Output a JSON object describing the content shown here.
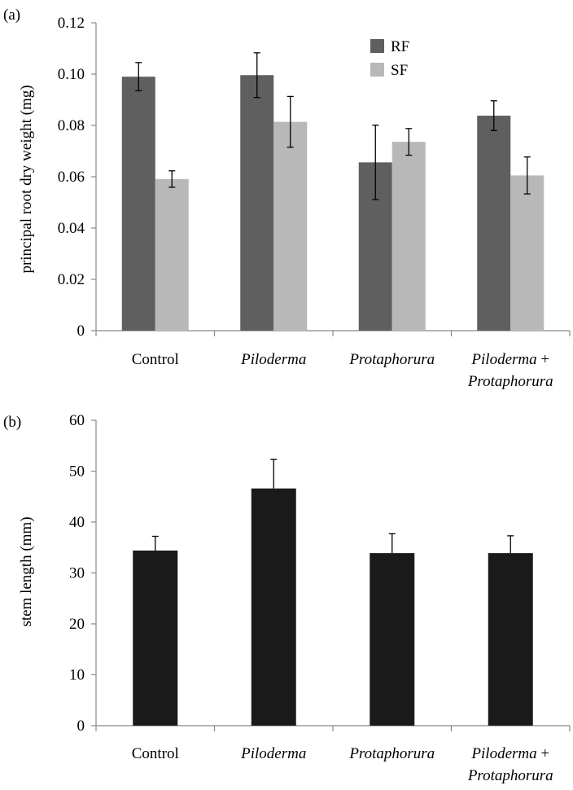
{
  "chart_data": [
    {
      "type": "bar",
      "panel_label": "(a)",
      "ylabel": "principal root dry weight (mg)",
      "ylim": [
        0,
        0.12
      ],
      "yticks": [
        "0",
        "0.02",
        "0.04",
        "0.06",
        "0.08",
        "0.10",
        "0.12"
      ],
      "ytick_values": [
        0,
        0.02,
        0.04,
        0.06,
        0.08,
        0.1,
        0.12
      ],
      "categories": [
        [
          {
            "t": "Control",
            "i": false
          }
        ],
        [
          {
            "t": "Piloderma",
            "i": true
          }
        ],
        [
          {
            "t": "Protaphorura",
            "i": true
          }
        ],
        [
          {
            "t": "Piloderma",
            "i": true
          },
          {
            "t": " +",
            "i": false
          },
          {
            "t": "\nProtaphorura",
            "i": true
          }
        ]
      ],
      "legend_position": "top-center",
      "series": [
        {
          "name": "RF",
          "color": "#5f5f5f",
          "values": [
            0.099,
            0.0996,
            0.0656,
            0.0838
          ],
          "errors": [
            0.0055,
            0.0087,
            0.0145,
            0.0058
          ]
        },
        {
          "name": "SF",
          "color": "#b8b8b8",
          "values": [
            0.0591,
            0.0814,
            0.0736,
            0.0605
          ],
          "errors": [
            0.0032,
            0.0099,
            0.0052,
            0.0072
          ]
        }
      ],
      "grid": false
    },
    {
      "type": "bar",
      "panel_label": "(b)",
      "ylabel": "stem length (mm)",
      "ylim": [
        0,
        60
      ],
      "yticks": [
        "0",
        "10",
        "20",
        "30",
        "40",
        "50",
        "60"
      ],
      "ytick_values": [
        0,
        10,
        20,
        30,
        40,
        50,
        60
      ],
      "categories": [
        [
          {
            "t": "Control",
            "i": false
          }
        ],
        [
          {
            "t": "Piloderma",
            "i": true
          }
        ],
        [
          {
            "t": "Protaphorura",
            "i": true
          }
        ],
        [
          {
            "t": "Piloderma",
            "i": true
          },
          {
            "t": " +",
            "i": false
          },
          {
            "t": "\nProtaphorura",
            "i": true
          }
        ]
      ],
      "series": [
        {
          "color": "#1a1a1a",
          "values": [
            34.4,
            46.6,
            33.9,
            33.9
          ],
          "errors": [
            2.8,
            5.7,
            3.8,
            3.4
          ]
        }
      ],
      "grid": false
    }
  ]
}
